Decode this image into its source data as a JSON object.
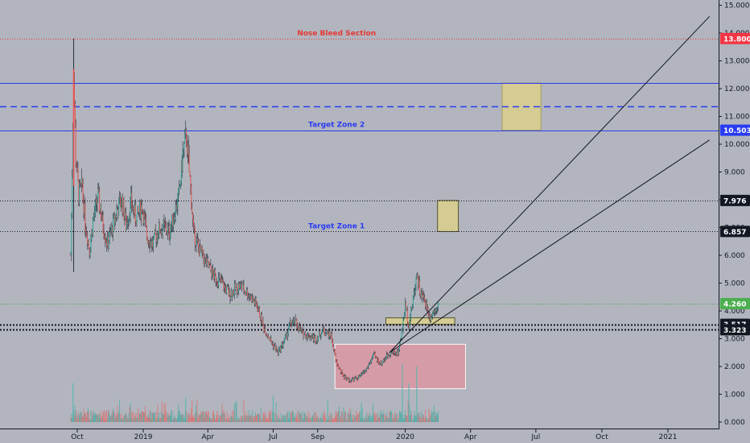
{
  "chart_data": {
    "type": "candlestick",
    "title": "",
    "xlabel": "",
    "ylabel": "",
    "ylim": [
      0,
      15.3
    ],
    "grid": false,
    "x_ticks": [
      {
        "label": "Oct",
        "date": "2018-10-01"
      },
      {
        "label": "2019",
        "date": "2019-01-01"
      },
      {
        "label": "Apr",
        "date": "2019-04-01"
      },
      {
        "label": "Jul",
        "date": "2019-07-01"
      },
      {
        "label": "Sep",
        "date": "2019-09-01"
      },
      {
        "label": "2020",
        "date": "2020-01-01"
      },
      {
        "label": "Apr",
        "date": "2020-04-01"
      },
      {
        "label": "Jul",
        "date": "2020-07-01"
      },
      {
        "label": "Oct",
        "date": "2020-10-01"
      },
      {
        "label": "2021",
        "date": "2021-01-01"
      }
    ],
    "y_ticks": [
      "15.000",
      "14.000",
      "13.000",
      "12.000",
      "11.000",
      "10.000",
      "9.000",
      "8.000",
      "7.000",
      "6.000",
      "5.000",
      "4.000",
      "3.000",
      "2.000",
      "1.000",
      "0.000"
    ],
    "price_path": [
      {
        "date": "2018-09-22",
        "close": 6.0
      },
      {
        "date": "2018-09-24",
        "close": 9.0
      },
      {
        "date": "2018-09-26",
        "close": 12.5
      },
      {
        "date": "2018-09-29",
        "close": 9.5
      },
      {
        "date": "2018-10-03",
        "close": 8.2
      },
      {
        "date": "2018-10-08",
        "close": 8.5
      },
      {
        "date": "2018-10-12",
        "close": 7.2
      },
      {
        "date": "2018-10-18",
        "close": 6.2
      },
      {
        "date": "2018-10-24",
        "close": 7.4
      },
      {
        "date": "2018-10-30",
        "close": 8.1
      },
      {
        "date": "2018-11-05",
        "close": 7.2
      },
      {
        "date": "2018-11-12",
        "close": 6.4
      },
      {
        "date": "2018-11-18",
        "close": 6.9
      },
      {
        "date": "2018-11-25",
        "close": 7.6
      },
      {
        "date": "2018-12-02",
        "close": 8.0
      },
      {
        "date": "2018-12-08",
        "close": 7.1
      },
      {
        "date": "2018-12-15",
        "close": 7.9
      },
      {
        "date": "2018-12-22",
        "close": 7.3
      },
      {
        "date": "2018-12-30",
        "close": 7.8
      },
      {
        "date": "2019-01-06",
        "close": 6.7
      },
      {
        "date": "2019-01-14",
        "close": 6.4
      },
      {
        "date": "2019-01-22",
        "close": 6.9
      },
      {
        "date": "2019-01-30",
        "close": 7.0
      },
      {
        "date": "2019-02-06",
        "close": 6.8
      },
      {
        "date": "2019-02-14",
        "close": 7.6
      },
      {
        "date": "2019-02-20",
        "close": 8.2
      },
      {
        "date": "2019-02-25",
        "close": 9.6
      },
      {
        "date": "2019-03-02",
        "close": 10.3
      },
      {
        "date": "2019-03-05",
        "close": 9.3
      },
      {
        "date": "2019-03-08",
        "close": 8.4
      },
      {
        "date": "2019-03-12",
        "close": 6.8
      },
      {
        "date": "2019-03-20",
        "close": 6.2
      },
      {
        "date": "2019-03-28",
        "close": 5.8
      },
      {
        "date": "2019-04-08",
        "close": 5.3
      },
      {
        "date": "2019-04-20",
        "close": 5.0
      },
      {
        "date": "2019-05-01",
        "close": 4.6
      },
      {
        "date": "2019-05-15",
        "close": 4.9
      },
      {
        "date": "2019-05-28",
        "close": 4.6
      },
      {
        "date": "2019-06-08",
        "close": 4.2
      },
      {
        "date": "2019-06-18",
        "close": 3.4
      },
      {
        "date": "2019-06-28",
        "close": 2.9
      },
      {
        "date": "2019-07-08",
        "close": 2.5
      },
      {
        "date": "2019-07-18",
        "close": 3.0
      },
      {
        "date": "2019-07-24",
        "close": 3.5
      },
      {
        "date": "2019-08-01",
        "close": 3.6
      },
      {
        "date": "2019-08-10",
        "close": 3.2
      },
      {
        "date": "2019-08-20",
        "close": 3.1
      },
      {
        "date": "2019-08-30",
        "close": 3.0
      },
      {
        "date": "2019-09-08",
        "close": 3.3
      },
      {
        "date": "2019-09-20",
        "close": 3.1
      },
      {
        "date": "2019-09-26",
        "close": 2.2
      },
      {
        "date": "2019-10-05",
        "close": 1.7
      },
      {
        "date": "2019-10-15",
        "close": 1.5
      },
      {
        "date": "2019-10-28",
        "close": 1.6
      },
      {
        "date": "2019-11-08",
        "close": 1.9
      },
      {
        "date": "2019-11-18",
        "close": 2.4
      },
      {
        "date": "2019-11-28",
        "close": 2.1
      },
      {
        "date": "2019-12-10",
        "close": 2.5
      },
      {
        "date": "2019-12-22",
        "close": 2.5
      },
      {
        "date": "2019-12-27",
        "close": 3.2
      },
      {
        "date": "2020-01-01",
        "close": 4.2
      },
      {
        "date": "2020-01-06",
        "close": 3.5
      },
      {
        "date": "2020-01-12",
        "close": 4.4
      },
      {
        "date": "2020-01-17",
        "close": 5.4
      },
      {
        "date": "2020-01-22",
        "close": 4.6
      },
      {
        "date": "2020-01-28",
        "close": 4.4
      },
      {
        "date": "2020-02-04",
        "close": 3.8
      },
      {
        "date": "2020-02-10",
        "close": 4.0
      },
      {
        "date": "2020-02-16",
        "close": 4.3
      }
    ],
    "price_high_max": 13.8,
    "volume_bars": [
      {
        "date": "2018-09-25",
        "value": 1.4
      },
      {
        "date": "2018-09-28",
        "value": 0.6
      },
      {
        "date": "2018-10-05",
        "value": 0.4
      },
      {
        "date": "2018-11-01",
        "value": 0.3
      },
      {
        "date": "2019-01-01",
        "value": 0.2
      },
      {
        "date": "2019-03-01",
        "value": 0.9
      },
      {
        "date": "2019-03-15",
        "value": 0.6
      },
      {
        "date": "2019-07-01",
        "value": 0.95
      },
      {
        "date": "2019-09-15",
        "value": 0.8
      },
      {
        "date": "2019-11-01",
        "value": 0.7
      },
      {
        "date": "2019-12-28",
        "value": 2.1
      },
      {
        "date": "2020-01-06",
        "value": 1.4
      },
      {
        "date": "2020-01-17",
        "value": 2.0
      },
      {
        "date": "2020-02-10",
        "value": 0.6
      }
    ],
    "horizontal_levels": [
      {
        "value": 13.8,
        "label": "13.800",
        "color": "#e53935",
        "style": "dotted",
        "badge_bg": "#f23645"
      },
      {
        "value": 12.2,
        "color": "#2a3bf2",
        "style": "solid"
      },
      {
        "value": 11.35,
        "color": "#2a3bf2",
        "style": "dashed"
      },
      {
        "value": 10.503,
        "label": "10.503",
        "color": "#2a3bf2",
        "style": "solid",
        "badge_bg": "#2a3bf2"
      },
      {
        "value": 7.976,
        "label": "7.976",
        "color": "#131722",
        "style": "dotted",
        "badge_bg": "#131722"
      },
      {
        "value": 6.857,
        "label": "6.857",
        "color": "#131722",
        "style": "dotted",
        "badge_bg": "#131722"
      },
      {
        "value": 4.26,
        "label": "4.260",
        "color": "#43a047",
        "style": "dotted",
        "badge_bg": "#4caf50"
      },
      {
        "value": 3.517,
        "label": "3.517",
        "color": "#131722",
        "style": "dotted-thick",
        "badge_bg": "#131722"
      },
      {
        "value": 3.323,
        "label": "3.323",
        "color": "#131722",
        "style": "dotted-thick",
        "badge_bg": "#131722"
      }
    ],
    "annotations": [
      {
        "text": "Nose Bleed Section",
        "date": "2019-09-25",
        "value": 13.8,
        "color": "#e53935"
      },
      {
        "text": "Target Zone 2",
        "date": "2019-09-25",
        "value": 10.503,
        "color": "#2a3bf2"
      },
      {
        "text": "Target Zone 1",
        "date": "2019-09-25",
        "value": 6.857,
        "color": "#2a3bf2"
      }
    ],
    "zones": [
      {
        "from_date": "2020-05-15",
        "to_date": "2020-07-08",
        "low": 10.503,
        "high": 12.2,
        "color": "#d9cf8f",
        "border": "#a59a52"
      },
      {
        "from_date": "2020-02-15",
        "to_date": "2020-03-15",
        "low": 6.857,
        "high": 7.976,
        "color": "#d9cf8f",
        "border": "#474a1e"
      },
      {
        "from_date": "2019-12-05",
        "to_date": "2020-03-10",
        "low": 3.517,
        "high": 3.75,
        "color": "#d9cf8f",
        "border": "#474a1e"
      },
      {
        "from_date": "2019-09-25",
        "to_date": "2020-03-25",
        "low": 1.2,
        "high": 2.8,
        "color": "#d99aa6",
        "border": "#ffffff"
      }
    ],
    "trend_lines": [
      {
        "from_date": "2019-12-10",
        "from_value": 2.5,
        "to_date": "2021-02-28",
        "to_value": 14.6
      },
      {
        "from_date": "2019-12-10",
        "from_value": 2.5,
        "to_date": "2021-02-28",
        "to_value": 10.15
      }
    ],
    "colors": {
      "background": "#b2b5be",
      "up": "#26a69a",
      "down": "#ef5350"
    }
  }
}
